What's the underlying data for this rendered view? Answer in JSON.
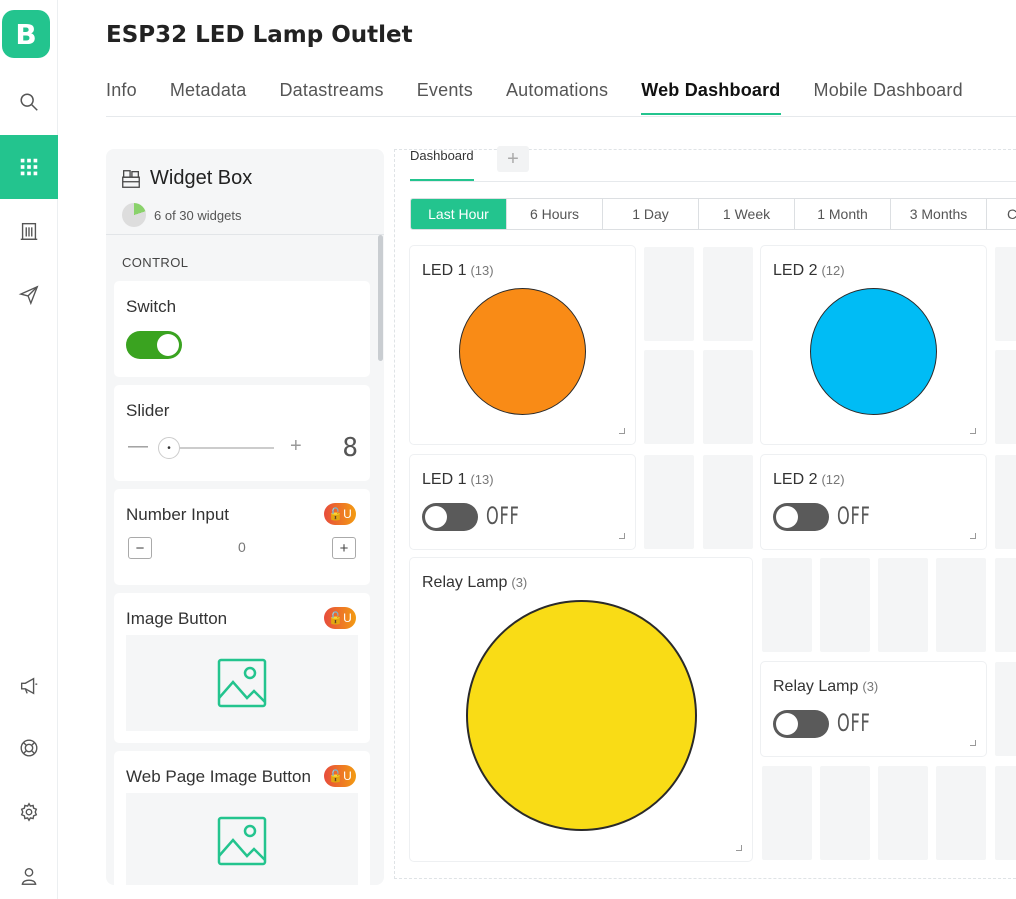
{
  "app": {
    "logo_letter": "B",
    "title": "ESP32 LED Lamp Outlet"
  },
  "tabs": [
    "Info",
    "Metadata",
    "Datastreams",
    "Events",
    "Automations",
    "Web Dashboard",
    "Mobile Dashboard"
  ],
  "active_tab": "Web Dashboard",
  "widget_box": {
    "title": "Widget Box",
    "count_text": "6 of 30 widgets",
    "section": "CONTROL",
    "widgets": {
      "switch": "Switch",
      "slider": "Slider",
      "slider_value": "8",
      "number_input": "Number Input",
      "number_value": "0",
      "image_button": "Image Button",
      "web_page_image_button": "Web Page Image Button"
    },
    "lock_badge": "🔓U"
  },
  "dashboard": {
    "tab": "Dashboard",
    "add_tab": "+",
    "ranges": [
      "Last Hour",
      "6 Hours",
      "1 Day",
      "1 Week",
      "1 Month",
      "3 Months",
      "C"
    ],
    "active_range": "Last Hour",
    "widgets": {
      "led1_title": "LED 1",
      "led1_pin": "(13)",
      "led2_title": "LED 2",
      "led2_pin": "(12)",
      "led1_sw_title": "LED 1",
      "led1_sw_pin": "(13)",
      "led1_state": "OFF",
      "led2_sw_title": "LED 2",
      "led2_sw_pin": "(12)",
      "led2_state": "OFF",
      "relay_title": "Relay Lamp",
      "relay_pin": "(3)",
      "relay_sw_title": "Relay Lamp",
      "relay_sw_pin": "(3)",
      "relay_state": "OFF"
    }
  },
  "colors": {
    "accent": "#23c48e",
    "led1": "#f98b16",
    "led2": "#00bcf5",
    "relay": "#f9dc16",
    "switch_on": "#3aa320"
  }
}
